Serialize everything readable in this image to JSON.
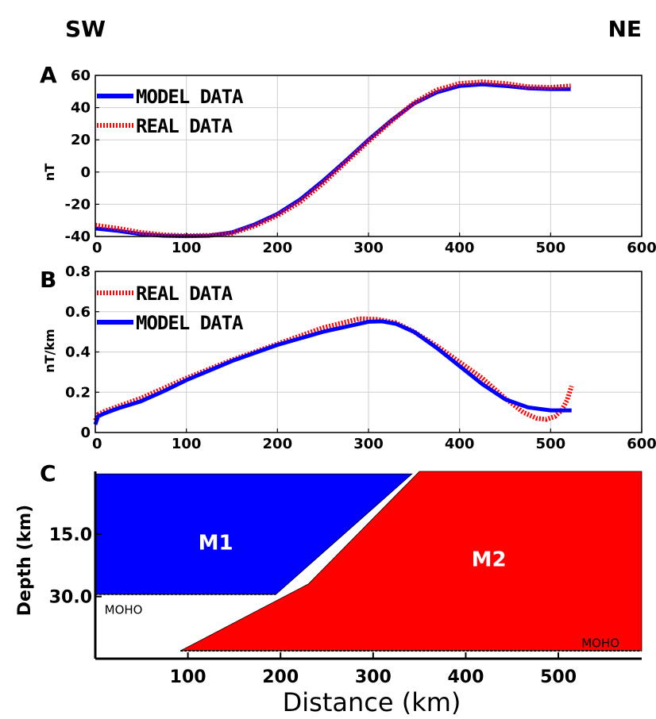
{
  "figure": {
    "left_label": "SW",
    "right_label": "NE"
  },
  "chart_data": [
    {
      "type": "line",
      "panel_label": "A",
      "ylabel": "nT",
      "xlabel": "",
      "xlim": [
        0,
        600
      ],
      "ylim": [
        -40,
        60
      ],
      "xticks": [
        0,
        100,
        200,
        300,
        400,
        500,
        600
      ],
      "yticks": [
        -40,
        -20,
        0,
        20,
        40,
        60
      ],
      "grid": true,
      "legend_position": "top-left",
      "series": [
        {
          "name": "MODEL DATA",
          "color": "#0000ff",
          "style": "solid",
          "x": [
            0,
            25,
            50,
            75,
            100,
            125,
            150,
            175,
            200,
            225,
            250,
            275,
            300,
            325,
            350,
            375,
            400,
            425,
            450,
            475,
            500,
            522
          ],
          "y": [
            -35,
            -36.5,
            -38.5,
            -39.5,
            -39.8,
            -39.5,
            -37.5,
            -32.5,
            -26,
            -17,
            -5.5,
            7,
            20,
            32,
            42.5,
            49.5,
            53.5,
            54.5,
            53.5,
            52,
            51.5,
            51.5
          ]
        },
        {
          "name": "REAL DATA",
          "color": "#ff0000",
          "style": "dotted",
          "x": [
            0,
            25,
            50,
            75,
            100,
            125,
            150,
            175,
            200,
            225,
            250,
            275,
            300,
            325,
            350,
            375,
            400,
            425,
            450,
            475,
            500,
            522
          ],
          "y": [
            -33,
            -35,
            -37.5,
            -39,
            -39.5,
            -39.3,
            -38,
            -33.5,
            -27,
            -18.5,
            -7,
            6,
            19,
            31.5,
            43,
            51,
            55,
            56,
            55,
            53,
            52.5,
            53.5
          ]
        }
      ]
    },
    {
      "type": "line",
      "panel_label": "B",
      "ylabel": "nT/km",
      "xlabel": "",
      "xlim": [
        0,
        600
      ],
      "ylim": [
        0,
        0.8
      ],
      "xticks": [
        0,
        100,
        200,
        300,
        400,
        500,
        600
      ],
      "yticks": [
        0,
        0.2,
        0.4,
        0.6,
        0.8
      ],
      "ytick_labels": [
        "0",
        "0.2",
        "0.4",
        "0.6",
        "0.8"
      ],
      "grid": true,
      "legend_position": "top-left",
      "series": [
        {
          "name": "REAL DATA",
          "color": "#ff0000",
          "style": "dotted",
          "x": [
            0,
            3,
            10,
            25,
            50,
            75,
            100,
            150,
            200,
            250,
            290,
            310,
            330,
            350,
            375,
            400,
            425,
            450,
            470,
            485,
            495,
            505,
            512,
            518,
            523
          ],
          "y": [
            0.06,
            0.09,
            0.105,
            0.13,
            0.17,
            0.22,
            0.27,
            0.36,
            0.44,
            0.52,
            0.565,
            0.562,
            0.545,
            0.5,
            0.43,
            0.35,
            0.27,
            0.17,
            0.1,
            0.07,
            0.065,
            0.08,
            0.11,
            0.16,
            0.23
          ]
        },
        {
          "name": "MODEL DATA",
          "color": "#0000ff",
          "style": "solid",
          "x": [
            0,
            3,
            10,
            25,
            50,
            75,
            100,
            150,
            200,
            250,
            300,
            315,
            330,
            350,
            375,
            400,
            425,
            450,
            475,
            500,
            523
          ],
          "y": [
            0.04,
            0.08,
            0.095,
            0.12,
            0.155,
            0.205,
            0.26,
            0.355,
            0.435,
            0.5,
            0.55,
            0.552,
            0.54,
            0.5,
            0.42,
            0.33,
            0.24,
            0.165,
            0.125,
            0.11,
            0.11
          ]
        }
      ]
    },
    {
      "type": "diagram",
      "panel_label": "C",
      "xlabel": "Distance (km)",
      "ylabel": "Depth (km)",
      "xticks": [
        100,
        200,
        300,
        400,
        500
      ],
      "yticks": [
        15,
        30
      ],
      "ytick_labels": [
        "15.0",
        "30.0"
      ],
      "xlim": [
        0,
        590
      ],
      "ylim": [
        43,
        0
      ],
      "regions": [
        {
          "name": "M1",
          "color": "#0000ff",
          "polygon": [
            [
              0,
              0.6
            ],
            [
              342,
              0.6
            ],
            [
              195,
              29.5
            ],
            [
              0,
              29.5
            ]
          ]
        },
        {
          "name": "M2",
          "color": "#ff0000",
          "polygon": [
            [
              350,
              0
            ],
            [
              590,
              0
            ],
            [
              590,
              43
            ],
            [
              92,
              43
            ],
            [
              230,
              27
            ]
          ]
        }
      ],
      "annotations": [
        {
          "text": "MOHO",
          "x": 10,
          "y": 33
        },
        {
          "text": "MOHO",
          "x": 525,
          "y": 41
        }
      ]
    }
  ]
}
